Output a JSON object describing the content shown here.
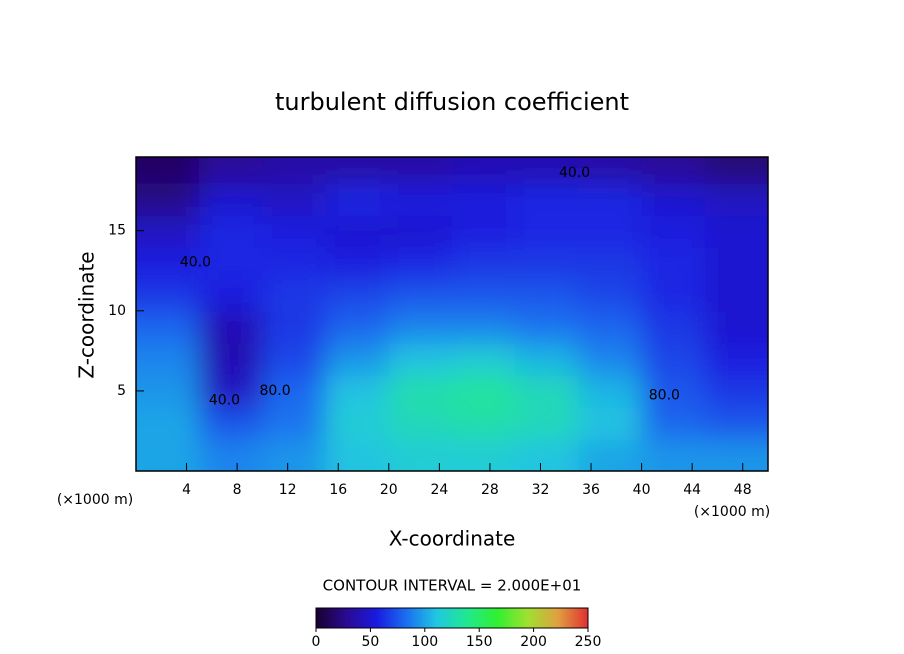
{
  "chart_data": {
    "type": "contour",
    "title": "turbulent diffusion coefficient",
    "xlabel": "X-coordinate",
    "ylabel": "Z-coordinate",
    "xunit": "(×1000 m)",
    "yunit": "(×1000 m)",
    "xlim": [
      0,
      50
    ],
    "xticks": [
      4,
      8,
      12,
      16,
      20,
      24,
      28,
      32,
      36,
      40,
      44,
      48
    ],
    "ylim": [
      0,
      19.6
    ],
    "yticks": [
      5,
      10,
      15
    ],
    "x": [
      2.5,
      7.5,
      12.5,
      17.5,
      22.5,
      27.5,
      32.5,
      37.5,
      42.5,
      47.5
    ],
    "y": [
      1,
      3,
      5,
      7,
      9,
      11,
      13,
      15,
      17,
      19
    ],
    "z": [
      [
        100,
        90,
        95,
        110,
        115,
        115,
        110,
        100,
        95,
        95
      ],
      [
        100,
        75,
        85,
        115,
        125,
        130,
        125,
        110,
        80,
        75
      ],
      [
        95,
        45,
        80,
        110,
        130,
        135,
        125,
        105,
        75,
        65
      ],
      [
        90,
        40,
        70,
        95,
        110,
        115,
        105,
        90,
        70,
        55
      ],
      [
        80,
        40,
        65,
        80,
        90,
        90,
        85,
        80,
        65,
        50
      ],
      [
        65,
        55,
        65,
        70,
        75,
        75,
        75,
        70,
        60,
        50
      ],
      [
        55,
        60,
        60,
        55,
        60,
        65,
        65,
        65,
        60,
        50
      ],
      [
        45,
        60,
        55,
        50,
        50,
        55,
        60,
        60,
        55,
        50
      ],
      [
        25,
        50,
        45,
        60,
        55,
        55,
        60,
        60,
        50,
        45
      ],
      [
        15,
        30,
        35,
        35,
        35,
        40,
        40,
        35,
        30,
        20
      ]
    ],
    "contour_labels": [
      {
        "label": "40.0",
        "x": 34.7,
        "y": 18.6
      },
      {
        "label": "40.0",
        "x": 4.7,
        "y": 13
      },
      {
        "label": "40.0",
        "x": 7,
        "y": 4.4
      },
      {
        "label": "80.0",
        "x": 11,
        "y": 5
      },
      {
        "label": "80.0",
        "x": 41.8,
        "y": 4.7
      }
    ],
    "contour_interval_label": "CONTOUR INTERVAL = 2.000E+01",
    "colorbar": {
      "lim": [
        0,
        250
      ],
      "ticks": [
        0,
        50,
        100,
        150,
        200,
        250
      ]
    },
    "colormap": [
      "#1a0030",
      "#2a0a90",
      "#1a1ae0",
      "#1a70f0",
      "#20c8e0",
      "#20e890",
      "#30f030",
      "#a0e030",
      "#e0a040",
      "#e03030"
    ]
  }
}
